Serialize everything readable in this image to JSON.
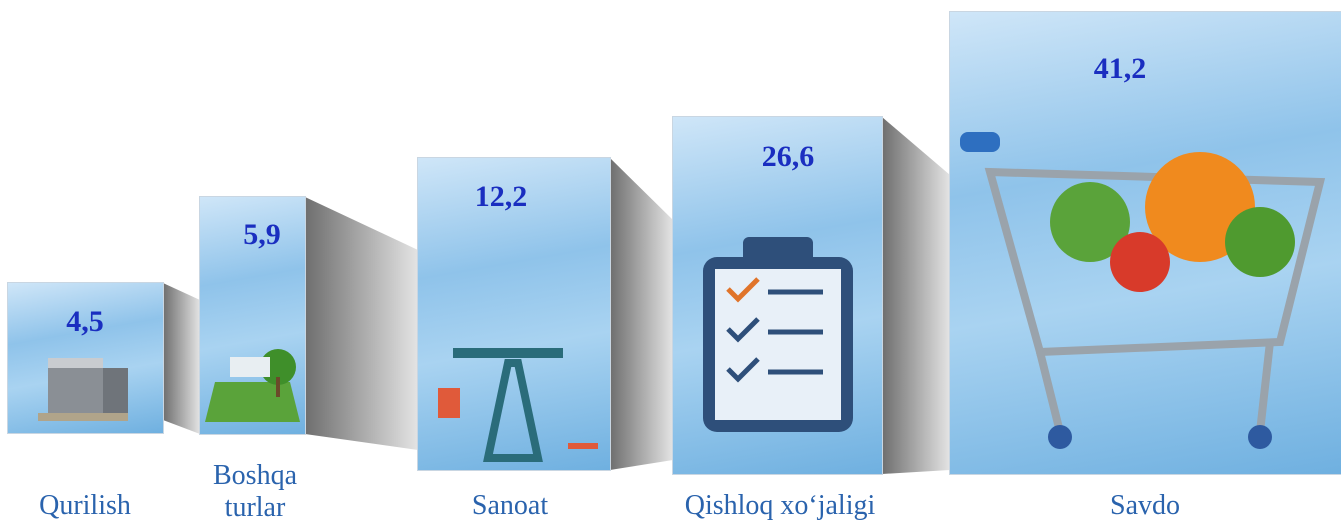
{
  "items": [
    {
      "value": "4,5",
      "label": "Qurilish"
    },
    {
      "value": "5,9",
      "label": "Boshqa turlar"
    },
    {
      "value": "12,2",
      "label": "Sanoat"
    },
    {
      "value": "26,6",
      "label": "Qishloq xo‘jaligi"
    },
    {
      "value": "41,2",
      "label": "Savdo"
    }
  ]
}
